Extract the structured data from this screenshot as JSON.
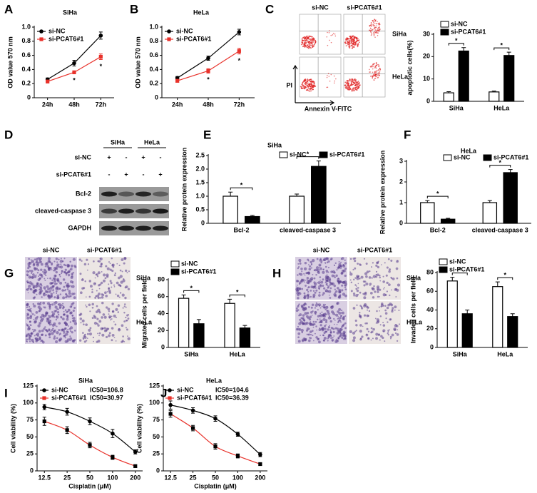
{
  "chart_data": [
    {
      "type": "line",
      "panel": "A",
      "title": "SiHa",
      "categories": [
        "24h",
        "48h",
        "72h"
      ],
      "ylabel": "OD value 570 nm",
      "ylim": [
        0,
        1.0
      ],
      "yticks": [
        0,
        0.2,
        0.4,
        0.6,
        0.8,
        {
          "value": 1.0,
          "label": "1.0"
        }
      ],
      "legend": "upper left",
      "series": [
        {
          "name": "si-NC",
          "color": "#000000",
          "marker": "circle",
          "values": [
            0.26,
            0.49,
            0.88
          ],
          "errors": [
            0.02,
            0.04,
            0.05
          ]
        },
        {
          "name": "si-PCAT6#1",
          "color": "#e8312a",
          "marker": "square",
          "values": [
            0.23,
            0.36,
            0.58
          ],
          "errors": [
            0.02,
            0.02,
            0.04
          ]
        }
      ],
      "significance": [
        null,
        "*",
        "*"
      ]
    },
    {
      "type": "line",
      "panel": "B",
      "title": "HeLa",
      "categories": [
        "24h",
        "48h",
        "72h"
      ],
      "ylabel": "OD value 570 nm",
      "ylim": [
        0,
        1.0
      ],
      "yticks": [
        0,
        0.2,
        0.4,
        0.6,
        0.8,
        {
          "value": 1.0,
          "label": "1.0"
        }
      ],
      "legend": "upper left",
      "series": [
        {
          "name": "si-NC",
          "color": "#000000",
          "marker": "circle",
          "values": [
            0.28,
            0.56,
            0.93
          ],
          "errors": [
            0.02,
            0.03,
            0.04
          ]
        },
        {
          "name": "si-PCAT6#1",
          "color": "#e8312a",
          "marker": "square",
          "values": [
            0.24,
            0.38,
            0.66
          ],
          "errors": [
            0.02,
            0.03,
            0.04
          ]
        }
      ],
      "significance": [
        null,
        "*",
        "*"
      ]
    },
    {
      "type": "bar",
      "panel": "C",
      "images": {
        "kind": "flow",
        "columns": [
          "si-NC",
          "si-PCAT6#1"
        ],
        "rows": [
          "SiHa",
          "HeLa"
        ],
        "y_axis": "PI",
        "x_axis": "Annexin V-FITC"
      },
      "categories": [
        "SiHa",
        "HeLa"
      ],
      "ylabel": "apoptotic cells(%)",
      "ylim": [
        0,
        30
      ],
      "yticks": [
        0,
        10,
        20,
        30
      ],
      "legend": "upper left",
      "series": [
        {
          "name": "si-NC",
          "color": "#ffffff",
          "values": [
            3.8,
            4.2
          ],
          "errors": [
            0.5,
            0.4
          ]
        },
        {
          "name": "si-PCAT6#1",
          "color": "#000000",
          "values": [
            22.5,
            20.5
          ],
          "errors": [
            1.5,
            1.5
          ]
        }
      ],
      "significance": [
        "*",
        "*"
      ]
    },
    {
      "type": "blot",
      "panel": "D",
      "groups": [
        "SiHa",
        "HeLa"
      ],
      "conditions": [
        {
          "name": "si-NC",
          "signs": [
            "+",
            "-",
            "+",
            "-"
          ]
        },
        {
          "name": "si-PCAT6#1",
          "signs": [
            "-",
            "+",
            "-",
            "+"
          ]
        }
      ],
      "proteins": [
        "Bcl-2",
        "cleaved-caspase 3",
        "GAPDH"
      ]
    },
    {
      "type": "bar",
      "panel": "E",
      "title": "SiHa",
      "categories": [
        "Bcl-2",
        "cleaved-caspase 3"
      ],
      "ylabel": "Relative protein expression",
      "ylim": [
        0,
        2.5
      ],
      "yticks": [
        0,
        0.5,
        {
          "value": 1.0,
          "label": "1.0"
        },
        1.5,
        {
          "value": 2.0,
          "label": "2.0"
        },
        2.5
      ],
      "legend": "upper center",
      "series": [
        {
          "name": "si-NC",
          "color": "#ffffff",
          "values": [
            1.0,
            1.0
          ],
          "errors": [
            0.15,
            0.08
          ]
        },
        {
          "name": "si-PCAT6#1",
          "color": "#000000",
          "values": [
            0.25,
            2.1
          ],
          "errors": [
            0.04,
            0.2
          ]
        }
      ],
      "significance": [
        "*",
        "*"
      ]
    },
    {
      "type": "bar",
      "panel": "F",
      "title": "HeLa",
      "categories": [
        "Bcl-2",
        "cleaved-caspase 3"
      ],
      "ylabel": "Relative protein expression",
      "ylim": [
        0,
        3
      ],
      "yticks": [
        0,
        1,
        2,
        3
      ],
      "legend": "upper center",
      "series": [
        {
          "name": "si-NC",
          "color": "#ffffff",
          "values": [
            1.0,
            1.0
          ],
          "errors": [
            0.1,
            0.1
          ]
        },
        {
          "name": "si-PCAT6#1",
          "color": "#000000",
          "values": [
            0.2,
            2.45
          ],
          "errors": [
            0.04,
            0.15
          ]
        }
      ],
      "significance": [
        "*",
        "*"
      ]
    },
    {
      "type": "bar",
      "panel": "G",
      "images": {
        "kind": "transwell",
        "columns": [
          "si-NC",
          "si-PCAT6#1"
        ],
        "rows": [
          "SiHa",
          "HeLa"
        ]
      },
      "categories": [
        "SiHa",
        "HeLa"
      ],
      "ylabel": "Migrated cells per field",
      "ylim": [
        0,
        80
      ],
      "yticks": [
        0,
        20,
        40,
        60,
        80
      ],
      "legend": "upper left",
      "series": [
        {
          "name": "si-NC",
          "color": "#ffffff",
          "values": [
            58,
            52
          ],
          "errors": [
            4,
            5
          ]
        },
        {
          "name": "si-PCAT6#1",
          "color": "#000000",
          "values": [
            28,
            23
          ],
          "errors": [
            5,
            3
          ]
        }
      ],
      "significance": [
        "*",
        "*"
      ]
    },
    {
      "type": "bar",
      "panel": "H",
      "images": {
        "kind": "transwell",
        "columns": [
          "si-NC",
          "si-PCAT6#1"
        ],
        "rows": [
          "SiHa",
          "HeLa"
        ]
      },
      "categories": [
        "SiHa",
        "HeLa"
      ],
      "ylabel": "Invaded cells per field",
      "ylim": [
        0,
        80
      ],
      "yticks": [
        0,
        20,
        40,
        60,
        80
      ],
      "legend": "upper left",
      "series": [
        {
          "name": "si-NC",
          "color": "#ffffff",
          "values": [
            71,
            65
          ],
          "errors": [
            4,
            5
          ]
        },
        {
          "name": "si-PCAT6#1",
          "color": "#000000",
          "values": [
            36,
            33
          ],
          "errors": [
            4,
            3
          ]
        }
      ],
      "significance": [
        "*",
        "*"
      ]
    },
    {
      "type": "dose-response",
      "panel": "I",
      "title": "SiHa",
      "xlabel": "Cisplatin (μM)",
      "ylabel": "Cell viability (%)",
      "x": [
        12.5,
        25,
        50,
        100,
        200
      ],
      "xscale": "log",
      "xlim": [
        10,
        250
      ],
      "xticks": [
        12.5,
        25,
        50,
        100,
        200
      ],
      "ylim": [
        0,
        125
      ],
      "yticks": [
        0,
        25,
        50,
        75,
        100,
        125
      ],
      "legend": "upper left",
      "series": [
        {
          "name": "si-NC",
          "ic50": "IC50=106.8",
          "color": "#000000",
          "marker": "circle",
          "values": [
            94,
            87,
            73,
            55,
            28
          ],
          "errors": [
            4,
            5,
            5,
            6,
            3
          ]
        },
        {
          "name": "si-PCAT6#1",
          "ic50": "IC50=30.97",
          "color": "#e8312a",
          "marker": "square",
          "values": [
            73,
            60,
            38,
            20,
            7
          ],
          "errors": [
            6,
            5,
            4,
            3,
            2
          ]
        }
      ]
    },
    {
      "type": "dose-response",
      "panel": "J",
      "title": "HeLa",
      "xlabel": "Cisplatin (μM)",
      "ylabel": "Cell viability (%)",
      "x": [
        12.5,
        25,
        50,
        100,
        200
      ],
      "xscale": "log",
      "xlim": [
        10,
        250
      ],
      "xticks": [
        12.5,
        25,
        50,
        100,
        200
      ],
      "ylim": [
        0,
        125
      ],
      "yticks": [
        0,
        25,
        50,
        75,
        100,
        125
      ],
      "legend": "upper left",
      "series": [
        {
          "name": "si-NC",
          "ic50": "IC50=104.6",
          "color": "#000000",
          "marker": "circle",
          "values": [
            97,
            89,
            77,
            54,
            24
          ],
          "errors": [
            6,
            4,
            4,
            3,
            3
          ]
        },
        {
          "name": "si-PCAT6#1",
          "ic50": "IC50=36.39",
          "color": "#e8312a",
          "marker": "square",
          "values": [
            84,
            63,
            36,
            22,
            10
          ],
          "errors": [
            5,
            4,
            4,
            3,
            2
          ]
        }
      ]
    }
  ]
}
